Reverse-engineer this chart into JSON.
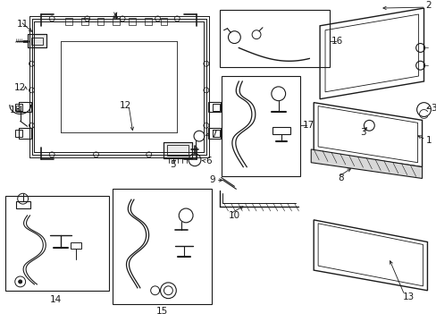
{
  "background_color": "#ffffff",
  "line_color": "#1a1a1a",
  "fig_width": 4.89,
  "fig_height": 3.6,
  "dpi": 100,
  "label_fontsize": 7.5
}
